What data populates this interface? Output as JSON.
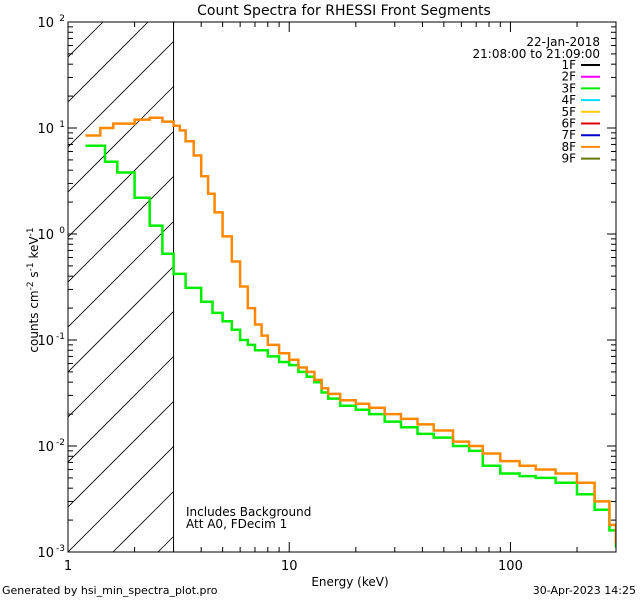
{
  "chart_data": {
    "type": "line",
    "title": "Count Spectra for RHESSI Front Segments",
    "xlabel": "Energy (keV)",
    "ylabel": "counts cm-2 s-1 keV-1",
    "x_scale": "log",
    "y_scale": "log",
    "xlim": [
      1,
      300
    ],
    "ylim": [
      0.001,
      100
    ],
    "x_tick_labels": [
      "1",
      "10",
      "100"
    ],
    "y_tick_labels": [
      "10",
      "10",
      "10",
      "10",
      "10",
      "10"
    ],
    "y_tick_exponents": [
      "-3",
      "-2",
      "-1",
      "0",
      "1",
      "2"
    ],
    "date": "22-Jan-2018",
    "time_range": "21:08:00 to 21:09:00",
    "notes": [
      "Includes Background",
      "Att A0, FDecim 1"
    ],
    "hatched_region_upper_keV": 3,
    "legend": [
      {
        "name": "1F",
        "color": "#000000"
      },
      {
        "name": "2F",
        "color": "#ff00ff"
      },
      {
        "name": "3F",
        "color": "#00ee00"
      },
      {
        "name": "4F",
        "color": "#00ddff"
      },
      {
        "name": "5F",
        "color": "#ffcc00"
      },
      {
        "name": "6F",
        "color": "#dd0000"
      },
      {
        "name": "7F",
        "color": "#0000cc"
      },
      {
        "name": "8F",
        "color": "#ff8800"
      },
      {
        "name": "9F",
        "color": "#667700"
      }
    ],
    "series": [
      {
        "name": "3F",
        "color": "#00ee00",
        "points": [
          [
            1.2,
            6.8
          ],
          [
            1.47,
            4.8
          ],
          [
            1.67,
            3.8
          ],
          [
            2.0,
            2.2
          ],
          [
            2.34,
            1.2
          ],
          [
            2.67,
            0.65
          ],
          [
            3.0,
            0.42
          ],
          [
            3.4,
            0.31
          ],
          [
            4.0,
            0.23
          ],
          [
            4.5,
            0.18
          ],
          [
            5.0,
            0.15
          ],
          [
            5.5,
            0.125
          ],
          [
            6.0,
            0.1
          ],
          [
            6.5,
            0.09
          ],
          [
            7.0,
            0.08
          ],
          [
            8.0,
            0.07
          ],
          [
            9.0,
            0.062
          ],
          [
            10.0,
            0.058
          ],
          [
            11.0,
            0.05
          ],
          [
            12.0,
            0.045
          ],
          [
            13.0,
            0.04
          ],
          [
            14.0,
            0.032
          ],
          [
            15.0,
            0.028
          ],
          [
            17.0,
            0.024
          ],
          [
            20.0,
            0.022
          ],
          [
            23.0,
            0.02
          ],
          [
            27.0,
            0.017
          ],
          [
            32.0,
            0.015
          ],
          [
            38.0,
            0.013
          ],
          [
            45.0,
            0.012
          ],
          [
            55.0,
            0.01
          ],
          [
            65.0,
            0.009
          ],
          [
            75.0,
            0.0065
          ],
          [
            90.0,
            0.0055
          ],
          [
            110.0,
            0.0052
          ],
          [
            130.0,
            0.005
          ],
          [
            160.0,
            0.0045
          ],
          [
            200.0,
            0.0035
          ],
          [
            240.0,
            0.0025
          ],
          [
            280.0,
            0.0016
          ],
          [
            300.0,
            0.0011
          ]
        ]
      },
      {
        "name": "8F",
        "color": "#ff8800",
        "points": [
          [
            1.2,
            8.5
          ],
          [
            1.4,
            10.0
          ],
          [
            1.6,
            11.0
          ],
          [
            2.0,
            12.0
          ],
          [
            2.34,
            12.5
          ],
          [
            2.67,
            11.5
          ],
          [
            3.0,
            10.5
          ],
          [
            3.2,
            9.5
          ],
          [
            3.4,
            7.5
          ],
          [
            3.7,
            5.5
          ],
          [
            4.0,
            3.5
          ],
          [
            4.3,
            2.4
          ],
          [
            4.6,
            1.6
          ],
          [
            5.0,
            0.95
          ],
          [
            5.5,
            0.55
          ],
          [
            6.0,
            0.32
          ],
          [
            6.5,
            0.2
          ],
          [
            7.0,
            0.14
          ],
          [
            7.5,
            0.11
          ],
          [
            8.0,
            0.09
          ],
          [
            9.0,
            0.075
          ],
          [
            10.0,
            0.065
          ],
          [
            11.0,
            0.055
          ],
          [
            12.0,
            0.05
          ],
          [
            13.0,
            0.042
          ],
          [
            14.0,
            0.035
          ],
          [
            15.0,
            0.031
          ],
          [
            17.0,
            0.027
          ],
          [
            20.0,
            0.025
          ],
          [
            23.0,
            0.023
          ],
          [
            27.0,
            0.02
          ],
          [
            32.0,
            0.018
          ],
          [
            38.0,
            0.016
          ],
          [
            45.0,
            0.014
          ],
          [
            55.0,
            0.011
          ],
          [
            65.0,
            0.01
          ],
          [
            75.0,
            0.0085
          ],
          [
            90.0,
            0.0072
          ],
          [
            110.0,
            0.0065
          ],
          [
            130.0,
            0.006
          ],
          [
            160.0,
            0.0055
          ],
          [
            200.0,
            0.0045
          ],
          [
            240.0,
            0.003
          ],
          [
            280.0,
            0.0018
          ],
          [
            300.0,
            0.0012
          ]
        ]
      }
    ]
  },
  "footer": {
    "generated_by": "Generated by hsi_min_spectra_plot.pro",
    "timestamp": "30-Apr-2023 14:25"
  }
}
